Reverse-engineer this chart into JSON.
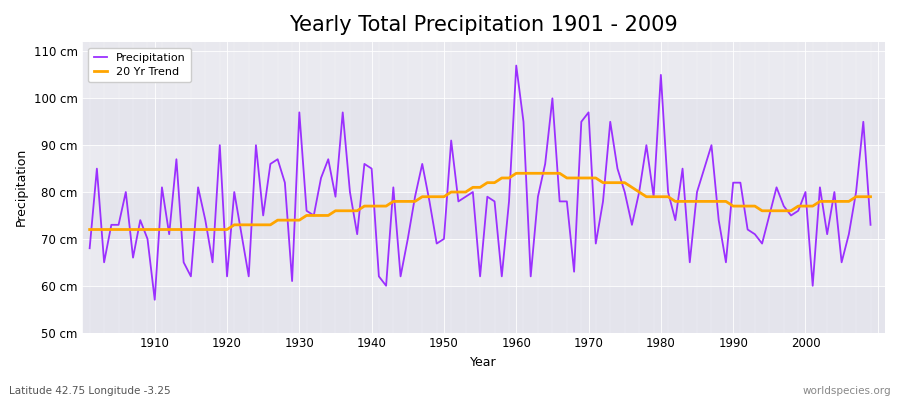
{
  "title": "Yearly Total Precipitation 1901 - 2009",
  "xlabel": "Year",
  "ylabel": "Precipitation",
  "subtitle": "Latitude 42.75 Longitude -3.25",
  "watermark": "worldspecies.org",
  "ylim": [
    50,
    112
  ],
  "yticks": [
    50,
    60,
    70,
    80,
    90,
    100,
    110
  ],
  "ytick_labels": [
    "50 cm",
    "60 cm",
    "70 cm",
    "80 cm",
    "90 cm",
    "100 cm",
    "110 cm"
  ],
  "years": [
    1901,
    1902,
    1903,
    1904,
    1905,
    1906,
    1907,
    1908,
    1909,
    1910,
    1911,
    1912,
    1913,
    1914,
    1915,
    1916,
    1917,
    1918,
    1919,
    1920,
    1921,
    1922,
    1923,
    1924,
    1925,
    1926,
    1927,
    1928,
    1929,
    1930,
    1931,
    1932,
    1933,
    1934,
    1935,
    1936,
    1937,
    1938,
    1939,
    1940,
    1941,
    1942,
    1943,
    1944,
    1945,
    1946,
    1947,
    1948,
    1949,
    1950,
    1951,
    1952,
    1953,
    1954,
    1955,
    1956,
    1957,
    1958,
    1959,
    1960,
    1961,
    1962,
    1963,
    1964,
    1965,
    1966,
    1967,
    1968,
    1969,
    1970,
    1971,
    1972,
    1973,
    1974,
    1975,
    1976,
    1977,
    1978,
    1979,
    1980,
    1981,
    1982,
    1983,
    1984,
    1985,
    1986,
    1987,
    1988,
    1989,
    1990,
    1991,
    1992,
    1993,
    1994,
    1995,
    1996,
    1997,
    1998,
    1999,
    2000,
    2001,
    2002,
    2003,
    2004,
    2005,
    2006,
    2007,
    2008,
    2009
  ],
  "precip": [
    68,
    85,
    65,
    73,
    73,
    80,
    66,
    74,
    70,
    57,
    81,
    71,
    87,
    65,
    62,
    81,
    74,
    65,
    90,
    62,
    80,
    71,
    62,
    90,
    75,
    86,
    87,
    82,
    61,
    97,
    76,
    75,
    83,
    87,
    79,
    97,
    80,
    71,
    86,
    85,
    62,
    60,
    81,
    62,
    70,
    79,
    86,
    78,
    69,
    70,
    91,
    78,
    79,
    80,
    62,
    79,
    78,
    62,
    78,
    107,
    95,
    62,
    79,
    86,
    100,
    78,
    78,
    63,
    95,
    97,
    69,
    78,
    95,
    85,
    80,
    73,
    80,
    90,
    79,
    105,
    80,
    74,
    85,
    65,
    80,
    85,
    90,
    74,
    65,
    82,
    82,
    72,
    71,
    69,
    75,
    81,
    77,
    75,
    76,
    80,
    60,
    81,
    71,
    80,
    65,
    71,
    80,
    95,
    73
  ],
  "trend": [
    72,
    72,
    72,
    72,
    72,
    72,
    72,
    72,
    72,
    72,
    72,
    72,
    72,
    72,
    72,
    72,
    72,
    72,
    72,
    72,
    73,
    73,
    73,
    73,
    73,
    73,
    74,
    74,
    74,
    74,
    75,
    75,
    75,
    75,
    76,
    76,
    76,
    76,
    77,
    77,
    77,
    77,
    78,
    78,
    78,
    78,
    79,
    79,
    79,
    79,
    80,
    80,
    80,
    81,
    81,
    82,
    82,
    83,
    83,
    84,
    84,
    84,
    84,
    84,
    84,
    84,
    83,
    83,
    83,
    83,
    83,
    82,
    82,
    82,
    82,
    81,
    80,
    79,
    79,
    79,
    79,
    78,
    78,
    78,
    78,
    78,
    78,
    78,
    78,
    77,
    77,
    77,
    77,
    76,
    76,
    76,
    76,
    76,
    77,
    77,
    77,
    78,
    78,
    78,
    78,
    78,
    79,
    79,
    79
  ],
  "precip_color": "#9B30FF",
  "trend_color": "#FFA500",
  "fig_bg_color": "#FFFFFF",
  "plot_bg_color_light": "#E8E8EE",
  "plot_bg_color_dark": "#D8D8E4",
  "grid_color": "#FFFFFF",
  "title_fontsize": 15,
  "label_fontsize": 9,
  "tick_fontsize": 8.5
}
